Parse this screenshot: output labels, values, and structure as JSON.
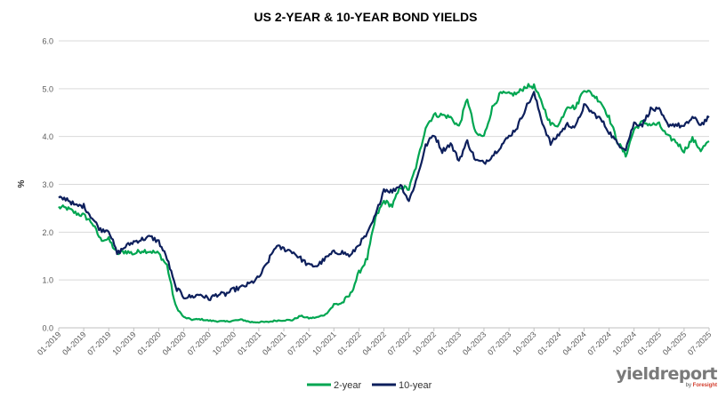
{
  "chart_data": {
    "type": "line",
    "title": "US 2-YEAR & 10-YEAR BOND YIELDS",
    "ylabel": "%",
    "xlabel": "",
    "ylim": [
      0,
      6
    ],
    "yticks": [
      "0.0",
      "1.0",
      "2.0",
      "3.0",
      "4.0",
      "5.0",
      "6.0"
    ],
    "xticks": [
      "01-2019",
      "04-2019",
      "07-2019",
      "10-2019",
      "01-2020",
      "04-2020",
      "07-2020",
      "10-2020",
      "01-2021",
      "04-2021",
      "07-2021",
      "10-2021",
      "01-2022",
      "04-2022",
      "07-2022",
      "10-2022",
      "01-2023",
      "04-2023",
      "07-2023",
      "10-2023",
      "01-2024",
      "04-2024",
      "07-2024",
      "10-2024",
      "01-2025",
      "04-2025",
      "07-2025"
    ],
    "x_unit": "month",
    "grid": true,
    "legend": "bottom",
    "colors": {
      "two_year": "#00a651",
      "ten_year": "#0d1f5c"
    },
    "series": [
      {
        "name": "2-year",
        "x": [
          "2019-01",
          "2019-02",
          "2019-03",
          "2019-04",
          "2019-05",
          "2019-06",
          "2019-07",
          "2019-08",
          "2019-09",
          "2019-10",
          "2019-11",
          "2019-12",
          "2020-01",
          "2020-02",
          "2020-03",
          "2020-04",
          "2020-05",
          "2020-06",
          "2020-07",
          "2020-08",
          "2020-09",
          "2020-10",
          "2020-11",
          "2020-12",
          "2021-01",
          "2021-02",
          "2021-03",
          "2021-04",
          "2021-05",
          "2021-06",
          "2021-07",
          "2021-08",
          "2021-09",
          "2021-10",
          "2021-11",
          "2021-12",
          "2022-01",
          "2022-02",
          "2022-03",
          "2022-04",
          "2022-05",
          "2022-06",
          "2022-07",
          "2022-08",
          "2022-09",
          "2022-10",
          "2022-11",
          "2022-12",
          "2023-01",
          "2023-02",
          "2023-03",
          "2023-04",
          "2023-05",
          "2023-06",
          "2023-07",
          "2023-08",
          "2023-09",
          "2023-10",
          "2023-11",
          "2023-12",
          "2024-01",
          "2024-02",
          "2024-03",
          "2024-04",
          "2024-05",
          "2024-06",
          "2024-07",
          "2024-08",
          "2024-09",
          "2024-10",
          "2024-11",
          "2024-12",
          "2025-01",
          "2025-02",
          "2025-03",
          "2025-04",
          "2025-05",
          "2025-06",
          "2025-07"
        ],
        "values": [
          2.52,
          2.5,
          2.4,
          2.35,
          2.2,
          1.85,
          1.85,
          1.55,
          1.6,
          1.55,
          1.62,
          1.6,
          1.55,
          1.3,
          0.45,
          0.22,
          0.17,
          0.18,
          0.15,
          0.14,
          0.13,
          0.15,
          0.17,
          0.12,
          0.12,
          0.12,
          0.15,
          0.16,
          0.16,
          0.25,
          0.2,
          0.22,
          0.28,
          0.48,
          0.52,
          0.7,
          1.15,
          1.45,
          2.3,
          2.65,
          2.55,
          2.95,
          2.9,
          3.45,
          4.2,
          4.45,
          4.45,
          4.4,
          4.2,
          4.8,
          4.05,
          4.0,
          4.6,
          4.9,
          4.88,
          4.9,
          5.05,
          5.05,
          4.68,
          4.25,
          4.25,
          4.65,
          4.6,
          5.0,
          4.88,
          4.73,
          4.4,
          3.9,
          3.6,
          4.15,
          4.3,
          4.25,
          4.25,
          4.0,
          3.9,
          3.7,
          3.95,
          3.72,
          3.9
        ]
      },
      {
        "name": "10-year",
        "x": [
          "2019-01",
          "2019-02",
          "2019-03",
          "2019-04",
          "2019-05",
          "2019-06",
          "2019-07",
          "2019-08",
          "2019-09",
          "2019-10",
          "2019-11",
          "2019-12",
          "2020-01",
          "2020-02",
          "2020-03",
          "2020-04",
          "2020-05",
          "2020-06",
          "2020-07",
          "2020-08",
          "2020-09",
          "2020-10",
          "2020-11",
          "2020-12",
          "2021-01",
          "2021-02",
          "2021-03",
          "2021-04",
          "2021-05",
          "2021-06",
          "2021-07",
          "2021-08",
          "2021-09",
          "2021-10",
          "2021-11",
          "2021-12",
          "2022-01",
          "2022-02",
          "2022-03",
          "2022-04",
          "2022-05",
          "2022-06",
          "2022-07",
          "2022-08",
          "2022-09",
          "2022-10",
          "2022-11",
          "2022-12",
          "2023-01",
          "2023-02",
          "2023-03",
          "2023-04",
          "2023-05",
          "2023-06",
          "2023-07",
          "2023-08",
          "2023-09",
          "2023-10",
          "2023-11",
          "2023-12",
          "2024-01",
          "2024-02",
          "2024-03",
          "2024-04",
          "2024-05",
          "2024-06",
          "2024-07",
          "2024-08",
          "2024-09",
          "2024-10",
          "2024-11",
          "2024-12",
          "2025-01",
          "2025-02",
          "2025-03",
          "2025-04",
          "2025-05",
          "2025-06",
          "2025-07"
        ],
        "values": [
          2.7,
          2.7,
          2.55,
          2.55,
          2.3,
          2.05,
          2.05,
          1.55,
          1.7,
          1.8,
          1.85,
          1.9,
          1.8,
          1.45,
          0.85,
          0.65,
          0.65,
          0.7,
          0.6,
          0.7,
          0.7,
          0.8,
          0.85,
          0.93,
          1.05,
          1.35,
          1.7,
          1.65,
          1.6,
          1.45,
          1.3,
          1.3,
          1.45,
          1.58,
          1.58,
          1.5,
          1.75,
          1.95,
          2.35,
          2.9,
          2.85,
          3.0,
          2.65,
          3.15,
          3.8,
          4.05,
          3.7,
          3.85,
          3.5,
          3.9,
          3.5,
          3.45,
          3.6,
          3.8,
          4.0,
          4.2,
          4.6,
          4.9,
          4.3,
          3.85,
          4.05,
          4.25,
          4.2,
          4.65,
          4.5,
          4.36,
          4.1,
          3.85,
          3.75,
          4.28,
          4.25,
          4.57,
          4.55,
          4.25,
          4.25,
          4.2,
          4.4,
          4.25,
          4.4
        ]
      }
    ]
  },
  "logo": {
    "main": "yieldreport",
    "sub_prefix": "by",
    "sub_brand": "Foresight"
  }
}
